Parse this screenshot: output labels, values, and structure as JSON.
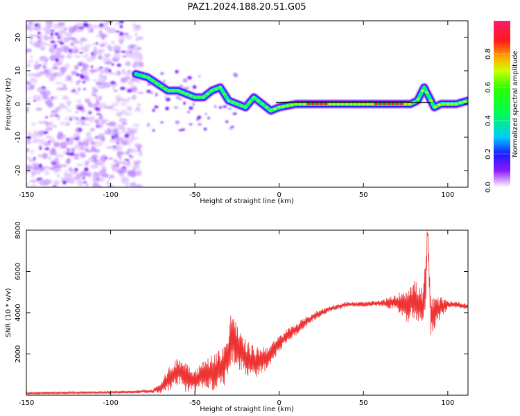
{
  "figure": {
    "title": "PAZ1.2024.188.20.51.G05"
  },
  "chart_data": [
    {
      "type": "heatmap",
      "xlabel": "Height of straight line (km)",
      "ylabel": "Frequency (Hz)",
      "xlim": [
        -150,
        112
      ],
      "ylim": [
        -25,
        25
      ],
      "x_ticks": [
        -150,
        -100,
        -50,
        0,
        50,
        100
      ],
      "y_ticks": [
        -20,
        -10,
        0,
        10,
        20
      ],
      "colorbar": {
        "label": "Normalized spectral amplitude",
        "range": [
          0,
          1
        ],
        "ticks": [
          0.0,
          0.2,
          0.4,
          0.6,
          0.8
        ],
        "colormap": "gist_rainbow_r"
      },
      "ridge": {
        "x": [
          -85,
          -78,
          -72,
          -66,
          -60,
          -55,
          -50,
          -45,
          -40,
          -35,
          -30,
          -25,
          -20,
          -15,
          -10,
          -5,
          0,
          10,
          20,
          30,
          40,
          50,
          60,
          70,
          78,
          82,
          86,
          88,
          92,
          96,
          100,
          105,
          112
        ],
        "y": [
          9,
          8,
          6,
          4,
          4,
          3,
          2,
          2,
          4,
          5,
          1,
          0,
          -1,
          2,
          0,
          -2,
          -1,
          0,
          0,
          0,
          0,
          0,
          0,
          0,
          0,
          1,
          5,
          3,
          -1,
          0,
          0,
          0,
          1
        ]
      },
      "grid": false,
      "legend": "none"
    },
    {
      "type": "line",
      "xlabel": "Height of straight line (km)",
      "ylabel": "SNR (10 * v/v)",
      "xlim": [
        -150,
        112
      ],
      "ylim": [
        0,
        8000
      ],
      "x_ticks": [
        -150,
        -100,
        -50,
        0,
        50,
        100
      ],
      "y_ticks": [
        2000,
        4000,
        6000,
        8000
      ],
      "color": "#ee3333",
      "series": [
        {
          "x": [
            -150,
            -120,
            -90,
            -75,
            -70,
            -65,
            -60,
            -55,
            -50,
            -45,
            -40,
            -35,
            -30,
            -28,
            -25,
            -20,
            -15,
            -10,
            -5,
            0,
            5,
            10,
            15,
            20,
            25,
            30,
            35,
            40,
            50,
            60,
            70,
            75,
            80,
            85,
            87,
            88,
            90,
            95,
            100,
            105,
            112
          ],
          "values": [
            100,
            120,
            150,
            200,
            400,
            800,
            1200,
            900,
            700,
            1000,
            1100,
            1300,
            1800,
            2900,
            2300,
            1800,
            1600,
            1700,
            2000,
            2500,
            2900,
            3200,
            3500,
            3800,
            4000,
            4200,
            4300,
            4400,
            4400,
            4450,
            4500,
            4400,
            4600,
            4300,
            5500,
            7900,
            3800,
            4200,
            4400,
            4400,
            4300
          ],
          "noise_amplitude": [
            60,
            60,
            70,
            90,
            300,
            600,
            700,
            800,
            600,
            700,
            900,
            1000,
            1200,
            1700,
            1100,
            900,
            800,
            700,
            500,
            400,
            350,
            300,
            250,
            200,
            180,
            150,
            130,
            130,
            130,
            150,
            400,
            900,
            1000,
            900,
            1200,
            500,
            900,
            600,
            200,
            150,
            150
          ]
        }
      ],
      "grid": false,
      "legend": "none"
    }
  ]
}
